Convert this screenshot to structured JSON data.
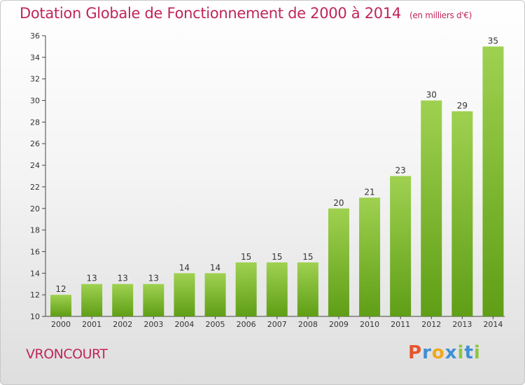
{
  "header": {
    "title": "Dotation Globale de Fonctionnement de 2000 à 2014",
    "unit": "(en milliers d'€)"
  },
  "footer": {
    "commune": "VRONCOURT",
    "brand": [
      "P",
      "r",
      "o",
      "x",
      "i",
      "t",
      "i"
    ]
  },
  "colors": {
    "title": "#c0255a",
    "bar_light": "#9fd150",
    "bar_dark": "#5f9e16",
    "brand": [
      "#e8542c",
      "#3f8fd4",
      "#f0a81e",
      "#3f8fd4",
      "#8cc63f",
      "#3f8fd4",
      "#8cc63f"
    ]
  },
  "chart_data": {
    "type": "bar",
    "title": "Dotation Globale de Fonctionnement de 2000 à 2014",
    "subtitle": "(en milliers d'€)",
    "categories": [
      "2000",
      "2001",
      "2002",
      "2003",
      "2004",
      "2005",
      "2006",
      "2007",
      "2008",
      "2009",
      "2010",
      "2011",
      "2012",
      "2013",
      "2014"
    ],
    "values": [
      12,
      13,
      13,
      13,
      14,
      14,
      15,
      15,
      15,
      20,
      21,
      23,
      30,
      29,
      35
    ],
    "ylim": [
      10,
      36
    ],
    "yticks": [
      10,
      12,
      14,
      16,
      18,
      20,
      22,
      24,
      26,
      28,
      30,
      32,
      34,
      36
    ],
    "grid": false,
    "data_labels": true
  }
}
